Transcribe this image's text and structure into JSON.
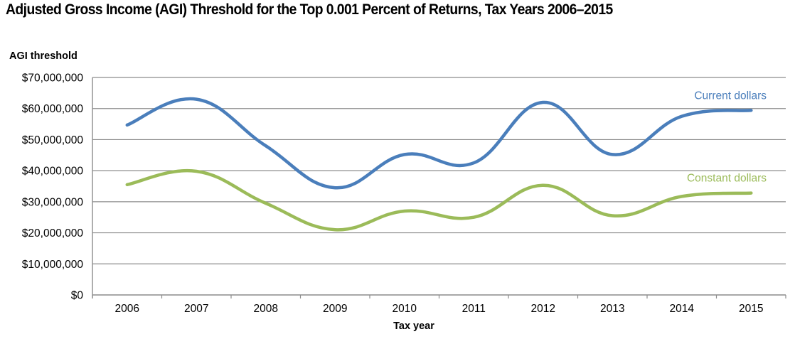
{
  "chart_data": {
    "type": "line",
    "title": "Adjusted Gross Income (AGI) Threshold for the Top 0.001 Percent of Returns, Tax Years 2006–2015",
    "xlabel": "Tax year",
    "ylabel": "AGI threshold",
    "categories": [
      "2006",
      "2007",
      "2008",
      "2009",
      "2010",
      "2011",
      "2012",
      "2013",
      "2014",
      "2015"
    ],
    "ylim": [
      0,
      70000000
    ],
    "yticks": [
      0,
      10000000,
      20000000,
      30000000,
      40000000,
      50000000,
      60000000,
      70000000
    ],
    "ytick_labels": [
      "$0",
      "$10,000,000",
      "$20,000,000",
      "$30,000,000",
      "$40,000,000",
      "$50,000,000",
      "$60,000,000",
      "$70,000,000"
    ],
    "grid": true,
    "series": [
      {
        "name": "Current dollars",
        "color": "#4a7ebb",
        "values": [
          54700000,
          63000000,
          48000000,
          34500000,
          45200000,
          42500000,
          62000000,
          45200000,
          57500000,
          59400000
        ]
      },
      {
        "name": "Constant dollars",
        "color": "#9bbb59",
        "values": [
          35500000,
          39800000,
          29500000,
          21000000,
          27000000,
          25000000,
          35300000,
          25500000,
          31700000,
          32800000
        ]
      }
    ]
  }
}
